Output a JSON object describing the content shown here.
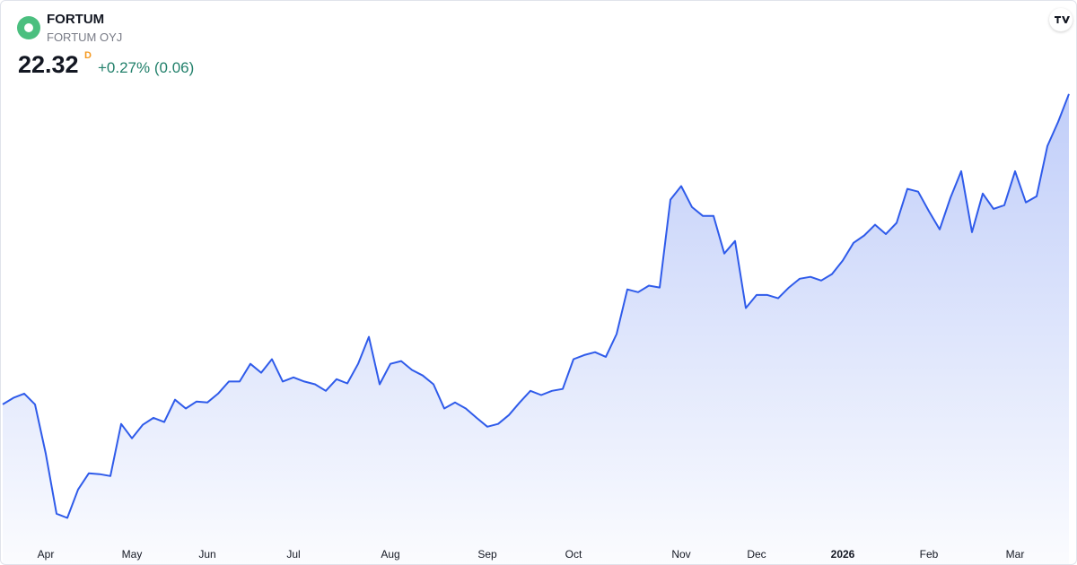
{
  "chart_data": {
    "type": "area",
    "title": "FORTUM",
    "subtitle": "FORTUM OYJ",
    "price": "22.32",
    "price_flag": "D",
    "change": "+0.27% (0.06)",
    "color": "#2f5bea",
    "ylim": [
      12.66,
      24.32
    ],
    "categories": [
      null,
      null,
      null,
      null,
      "Apr",
      null,
      null,
      null,
      null,
      null,
      null,
      null,
      "May",
      null,
      null,
      null,
      null,
      null,
      null,
      "Jun",
      null,
      null,
      null,
      null,
      null,
      null,
      null,
      "Jul",
      null,
      null,
      null,
      null,
      null,
      null,
      null,
      null,
      "Aug",
      null,
      null,
      null,
      null,
      null,
      null,
      null,
      null,
      "Sep",
      null,
      null,
      null,
      null,
      null,
      null,
      null,
      "Oct",
      null,
      null,
      null,
      null,
      null,
      null,
      null,
      null,
      null,
      "Nov",
      null,
      null,
      null,
      null,
      null,
      null,
      "Dec",
      null,
      null,
      null,
      null,
      null,
      null,
      null,
      "2026",
      null,
      null,
      null,
      null,
      null,
      null,
      null,
      "Feb",
      null,
      null,
      null,
      null,
      null,
      null,
      null,
      "Mar",
      null,
      null,
      null,
      null,
      null
    ],
    "values": [
      15.65,
      15.79,
      15.88,
      15.65,
      14.59,
      13.3,
      13.21,
      13.82,
      14.17,
      14.15,
      14.11,
      15.23,
      14.92,
      15.21,
      15.36,
      15.27,
      15.75,
      15.56,
      15.71,
      15.69,
      15.88,
      16.14,
      16.14,
      16.52,
      16.33,
      16.62,
      16.14,
      16.23,
      16.14,
      16.08,
      15.94,
      16.19,
      16.1,
      16.52,
      17.1,
      16.08,
      16.52,
      16.58,
      16.39,
      16.27,
      16.08,
      15.56,
      15.69,
      15.56,
      15.36,
      15.17,
      15.23,
      15.42,
      15.69,
      15.94,
      15.85,
      15.94,
      15.98,
      16.62,
      16.71,
      16.77,
      16.67,
      17.16,
      18.12,
      18.06,
      18.2,
      18.16,
      20.05,
      20.34,
      19.89,
      19.7,
      19.7,
      18.89,
      19.16,
      17.72,
      18.0,
      18.0,
      17.93,
      18.16,
      18.35,
      18.39,
      18.31,
      18.45,
      18.74,
      19.12,
      19.28,
      19.51,
      19.31,
      19.55,
      20.28,
      20.22,
      19.8,
      19.41,
      20.09,
      20.66,
      19.35,
      20.18,
      19.85,
      19.93,
      20.66,
      19.99,
      20.12,
      21.2,
      21.72,
      22.32
    ]
  }
}
